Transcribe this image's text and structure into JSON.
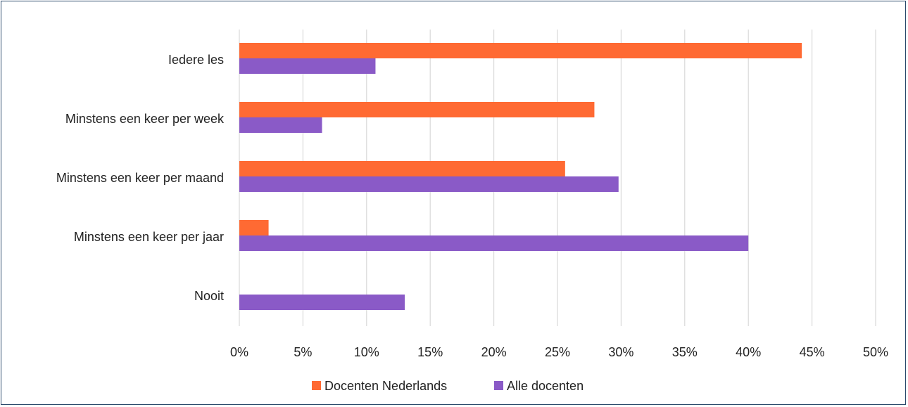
{
  "chart_data": {
    "type": "bar",
    "orientation": "horizontal",
    "categories": [
      "Iedere les",
      "Minstens een keer per week",
      "Minstens een keer per maand",
      "Minstens een keer per jaar",
      "Nooit"
    ],
    "series": [
      {
        "name": "Docenten Nederlands",
        "color": "#ff6a33",
        "values": [
          44.2,
          27.9,
          25.6,
          2.3,
          0
        ]
      },
      {
        "name": "Alle docenten",
        "color": "#8a5ac7",
        "values": [
          10.7,
          6.5,
          29.8,
          40.0,
          13.0
        ]
      }
    ],
    "xticks": [
      "0%",
      "5%",
      "10%",
      "15%",
      "20%",
      "25%",
      "30%",
      "35%",
      "40%",
      "45%",
      "50%"
    ],
    "xlim": [
      0,
      50
    ],
    "unit": "%",
    "grid": "vertical",
    "legend": "bottom",
    "title": "",
    "xlabel": "",
    "ylabel": ""
  }
}
